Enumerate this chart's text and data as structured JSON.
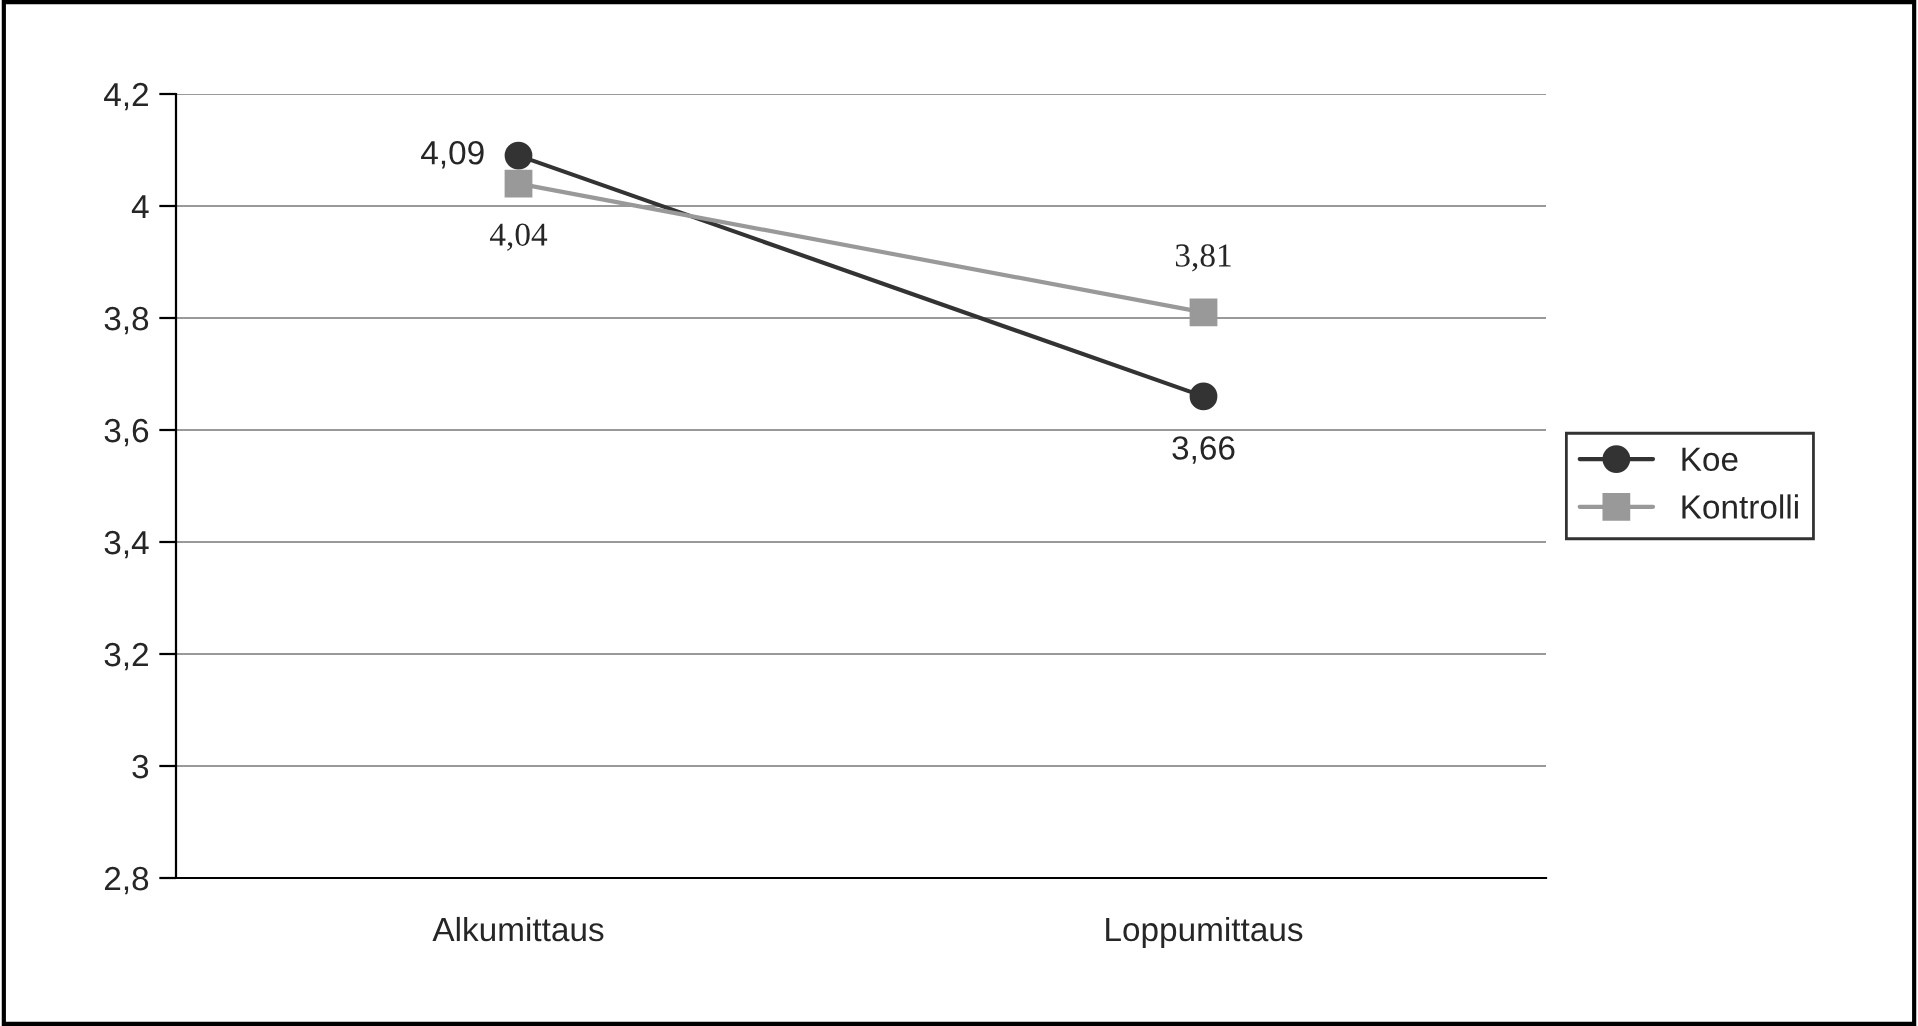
{
  "chart_data": {
    "type": "line",
    "categories": [
      "Alkumittaus",
      "Loppumittaus"
    ],
    "series": [
      {
        "name": "Koe",
        "color": "#333333",
        "marker": "circle",
        "values": [
          4.09,
          3.66
        ],
        "value_labels": [
          "4,09",
          "3,66"
        ]
      },
      {
        "name": "Kontrolli",
        "color": "#999999",
        "marker": "square",
        "values": [
          4.04,
          3.81
        ],
        "value_labels": [
          "4,04",
          "3,81"
        ]
      }
    ],
    "ylim": [
      2.8,
      4.2
    ],
    "yticks": [
      {
        "value": 2.8,
        "label": "2,8"
      },
      {
        "value": 3,
        "label": "3"
      },
      {
        "value": 3.2,
        "label": "3,2"
      },
      {
        "value": 3.4,
        "label": "3,4"
      },
      {
        "value": 3.6,
        "label": "3,6"
      },
      {
        "value": 3.8,
        "label": "3,8"
      },
      {
        "value": 4,
        "label": "4"
      },
      {
        "value": 4.2,
        "label": "4,2"
      }
    ],
    "grid": "y",
    "legend": "right",
    "line_style": "solid"
  }
}
